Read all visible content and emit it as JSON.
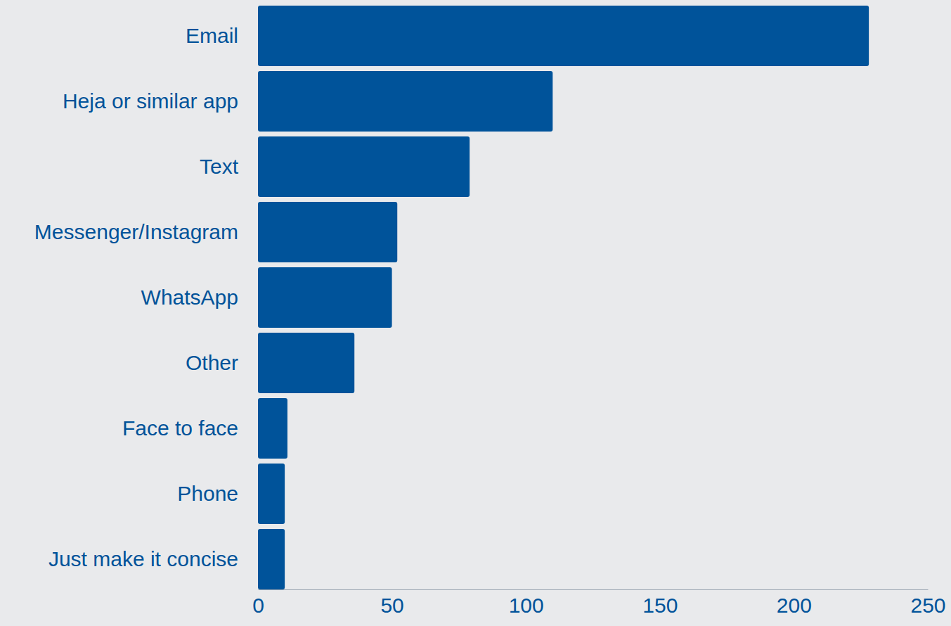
{
  "chart_data": {
    "type": "bar",
    "orientation": "horizontal",
    "categories": [
      "Email",
      "Heja or similar app",
      "Text",
      "Messenger/Instagram",
      "WhatsApp",
      "Other",
      "Face to face",
      "Phone",
      "Just make it concise"
    ],
    "values": [
      228,
      110,
      79,
      52,
      50,
      36,
      11,
      10,
      10
    ],
    "color": "#00539a",
    "xlim": [
      0,
      250
    ],
    "xticks": [
      0,
      50,
      100,
      150,
      200,
      250
    ],
    "grid": false
  }
}
